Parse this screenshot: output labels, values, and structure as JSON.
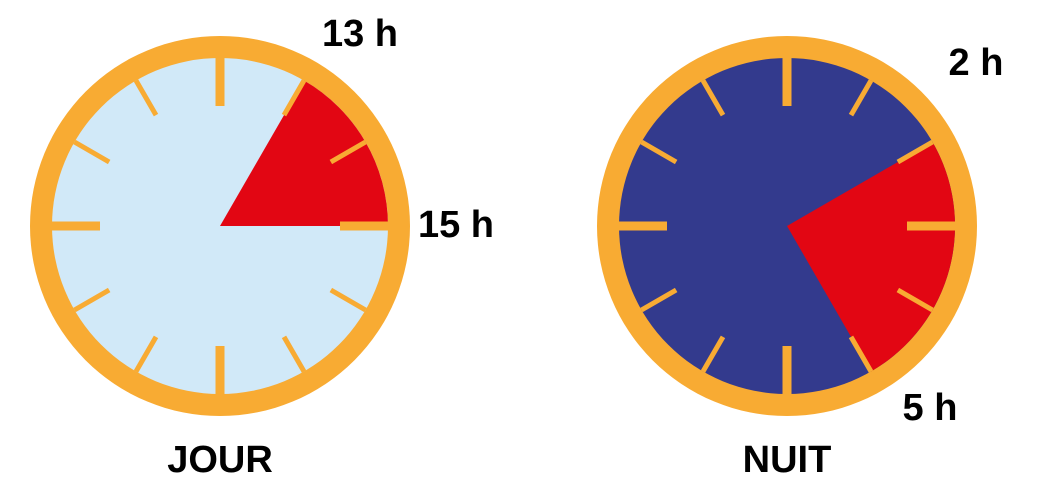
{
  "clocks": [
    {
      "id": "jour",
      "title": "JOUR",
      "face_color": "#d1e9f8",
      "rim_color": "#f8ab33",
      "tick_color": "#f8ab33",
      "sector_color": "#e20613",
      "sector_start_hour": 13,
      "sector_end_hour": 15,
      "start_label": "13 h",
      "end_label": "15 h"
    },
    {
      "id": "nuit",
      "title": "NUIT",
      "face_color": "#333a8d",
      "rim_color": "#f8ab33",
      "tick_color": "#f8ab33",
      "sector_color": "#e20613",
      "sector_start_hour": 2,
      "sector_end_hour": 5,
      "start_label": "2 h",
      "end_label": "5 h"
    }
  ]
}
